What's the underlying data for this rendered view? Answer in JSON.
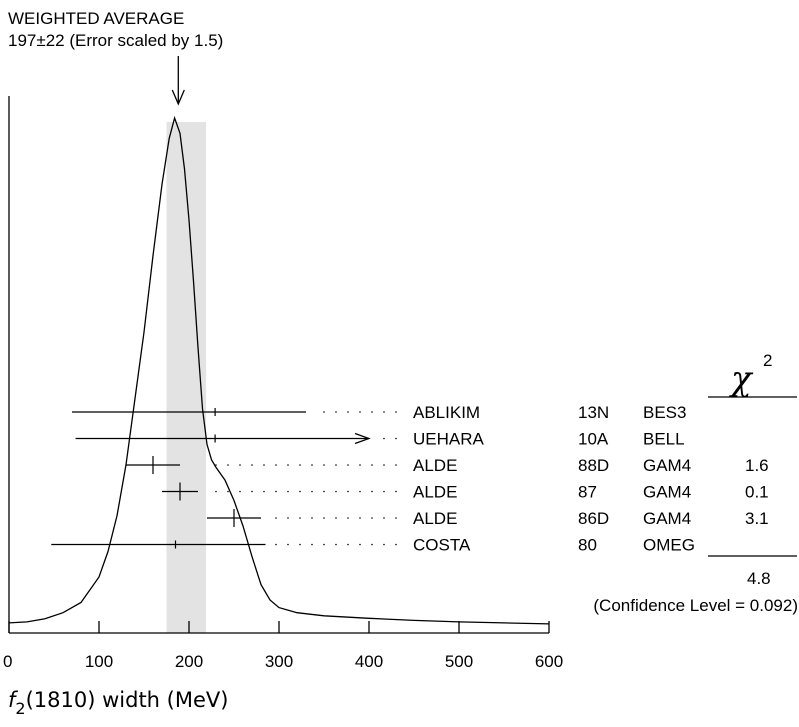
{
  "header": {
    "line1": "WEIGHTED AVERAGE",
    "line2": "197±22 (Error scaled by 1.5)"
  },
  "chart_data": {
    "type": "ideogram",
    "average": {
      "value": 197,
      "error": 22,
      "scale_factor": 1.5
    },
    "band": [
      175,
      219
    ],
    "xlim": [
      0,
      600
    ],
    "xticks": [
      0,
      100,
      200,
      300,
      400,
      500,
      600
    ],
    "xlabel": {
      "prefix": "f",
      "subscript": "2",
      "suffix": "(1810) width (MeV)"
    },
    "chi_header": "χ",
    "chi_sup": "2",
    "measurements": [
      {
        "author": "ABLIKIM",
        "year": "13N",
        "experiment": "BES3",
        "value": 229,
        "lo": 70,
        "hi": 330,
        "chi2": "",
        "arrow": false,
        "marker": "tick"
      },
      {
        "author": "UEHARA",
        "year": "10A",
        "experiment": "BELL",
        "value": 229,
        "lo": 74,
        "hi": 400,
        "chi2": "",
        "arrow": true,
        "marker": "tick"
      },
      {
        "author": "ALDE",
        "year": "88D",
        "experiment": "GAM4",
        "value": 160,
        "lo": 130,
        "hi": 190,
        "chi2": "1.6",
        "arrow": false,
        "marker": "cross"
      },
      {
        "author": "ALDE",
        "year": "87",
        "experiment": "GAM4",
        "value": 190,
        "lo": 170,
        "hi": 210,
        "chi2": "0.1",
        "arrow": false,
        "marker": "cross"
      },
      {
        "author": "ALDE",
        "year": "86D",
        "experiment": "GAM4",
        "value": 250,
        "lo": 220,
        "hi": 280,
        "chi2": "3.1",
        "arrow": false,
        "marker": "cross"
      },
      {
        "author": "COSTA",
        "year": "80",
        "experiment": "OMEG",
        "value": 185,
        "lo": 47,
        "hi": 285,
        "chi2": "",
        "arrow": false,
        "marker": "tick"
      }
    ],
    "chi2_total": "4.8",
    "confidence": "(Confidence Level = 0.092)",
    "curve": [
      [
        0,
        0.01
      ],
      [
        20,
        0.012
      ],
      [
        40,
        0.018
      ],
      [
        60,
        0.03
      ],
      [
        80,
        0.05
      ],
      [
        100,
        0.1
      ],
      [
        110,
        0.15
      ],
      [
        120,
        0.22
      ],
      [
        130,
        0.32
      ],
      [
        140,
        0.45
      ],
      [
        150,
        0.58
      ],
      [
        160,
        0.73
      ],
      [
        170,
        0.87
      ],
      [
        178,
        0.96
      ],
      [
        184,
        1.0
      ],
      [
        190,
        0.97
      ],
      [
        195,
        0.9
      ],
      [
        200,
        0.8
      ],
      [
        205,
        0.68
      ],
      [
        210,
        0.55
      ],
      [
        215,
        0.43
      ],
      [
        220,
        0.36
      ],
      [
        225,
        0.33
      ],
      [
        230,
        0.315
      ],
      [
        240,
        0.29
      ],
      [
        250,
        0.25
      ],
      [
        260,
        0.2
      ],
      [
        270,
        0.14
      ],
      [
        280,
        0.085
      ],
      [
        290,
        0.055
      ],
      [
        300,
        0.04
      ],
      [
        320,
        0.03
      ],
      [
        350,
        0.024
      ],
      [
        400,
        0.019
      ],
      [
        450,
        0.015
      ],
      [
        500,
        0.012
      ],
      [
        550,
        0.01
      ],
      [
        600,
        0.008
      ]
    ],
    "colors": {
      "band": "#e3e3e3",
      "ink": "#000000"
    }
  }
}
